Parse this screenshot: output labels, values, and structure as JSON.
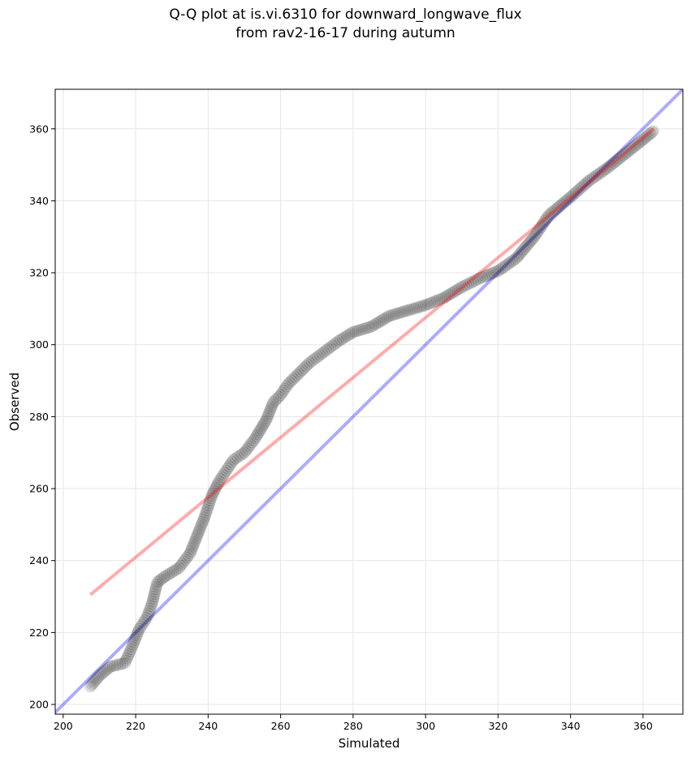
{
  "chart_data": {
    "type": "scatter",
    "title_line1": "Q-Q plot at is.vi.6310 for downward_longwave_flux",
    "title_line2": "from rav2-16-17 during autumn",
    "xlabel": "Simulated",
    "ylabel": "Observed",
    "xlim": [
      197.8,
      371
    ],
    "ylim": [
      197.3,
      371
    ],
    "xticks": [
      200,
      220,
      240,
      260,
      280,
      300,
      320,
      340,
      360
    ],
    "yticks": [
      200,
      220,
      240,
      260,
      280,
      300,
      320,
      340,
      360
    ],
    "grid": true,
    "quantile_points": [
      [
        207.5,
        205
      ],
      [
        210,
        208
      ],
      [
        213,
        210.5
      ],
      [
        217,
        211.5
      ],
      [
        219,
        216
      ],
      [
        221,
        221
      ],
      [
        223,
        224
      ],
      [
        224.5,
        228
      ],
      [
        226,
        234
      ],
      [
        228,
        235.5
      ],
      [
        232,
        238
      ],
      [
        235,
        242
      ],
      [
        237,
        247
      ],
      [
        239,
        252
      ],
      [
        241,
        258
      ],
      [
        243,
        262
      ],
      [
        245,
        265
      ],
      [
        247,
        268
      ],
      [
        250,
        270
      ],
      [
        253,
        274
      ],
      [
        256,
        279
      ],
      [
        258,
        284
      ],
      [
        260,
        286
      ],
      [
        262,
        289
      ],
      [
        265,
        292
      ],
      [
        268,
        295
      ],
      [
        272,
        298
      ],
      [
        276,
        301
      ],
      [
        280,
        303.5
      ],
      [
        285,
        305
      ],
      [
        290,
        308
      ],
      [
        295,
        309.5
      ],
      [
        300,
        311
      ],
      [
        305,
        313
      ],
      [
        310,
        316
      ],
      [
        315,
        318.5
      ],
      [
        320,
        320.5
      ],
      [
        325,
        324
      ],
      [
        330,
        330
      ],
      [
        334,
        336
      ],
      [
        340,
        341
      ],
      [
        345,
        345.5
      ],
      [
        350,
        349
      ],
      [
        355,
        353
      ],
      [
        360,
        357
      ],
      [
        363,
        359.5
      ]
    ],
    "fit_line": {
      "x": [
        207.5,
        363
      ],
      "y": [
        230.5,
        360
      ],
      "color": "#ff0000"
    },
    "identity_line": {
      "color": "#0000ff"
    },
    "marker_color": "#000000"
  }
}
